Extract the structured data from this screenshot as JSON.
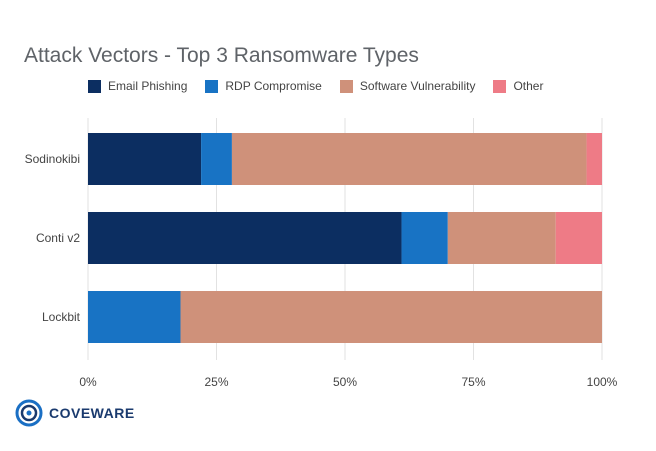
{
  "colors": {
    "email": "#0c2e61",
    "rdp": "#1873c4",
    "software": "#cf917a",
    "other": "#ee7b86",
    "grid": "#e2e2e2",
    "text": "#444444",
    "title": "#5f6368",
    "logo": "#1a3a6e"
  },
  "legend_placement": "top-left",
  "logo": {
    "text": "COVEWARE",
    "icon": "coveware-ring-logo"
  },
  "chart_data": {
    "type": "bar",
    "orientation": "horizontal",
    "stacked": true,
    "title": "Attack Vectors - Top 3 Ransomware Types",
    "xlabel": "",
    "ylabel": "",
    "xlim": [
      0,
      100
    ],
    "grid": true,
    "x_ticks": [
      "0%",
      "25%",
      "50%",
      "75%",
      "100%"
    ],
    "x_tick_values": [
      0,
      25,
      50,
      75,
      100
    ],
    "categories": [
      "Sodinokibi",
      "Conti v2",
      "Lockbit"
    ],
    "series": [
      {
        "name": "Email Phishing",
        "values": [
          22,
          61,
          0
        ]
      },
      {
        "name": "RDP Compromise",
        "values": [
          6,
          9,
          18
        ]
      },
      {
        "name": "Software Vulnerability",
        "values": [
          69,
          21,
          82
        ]
      },
      {
        "name": "Other",
        "values": [
          3,
          9,
          0
        ]
      }
    ]
  }
}
